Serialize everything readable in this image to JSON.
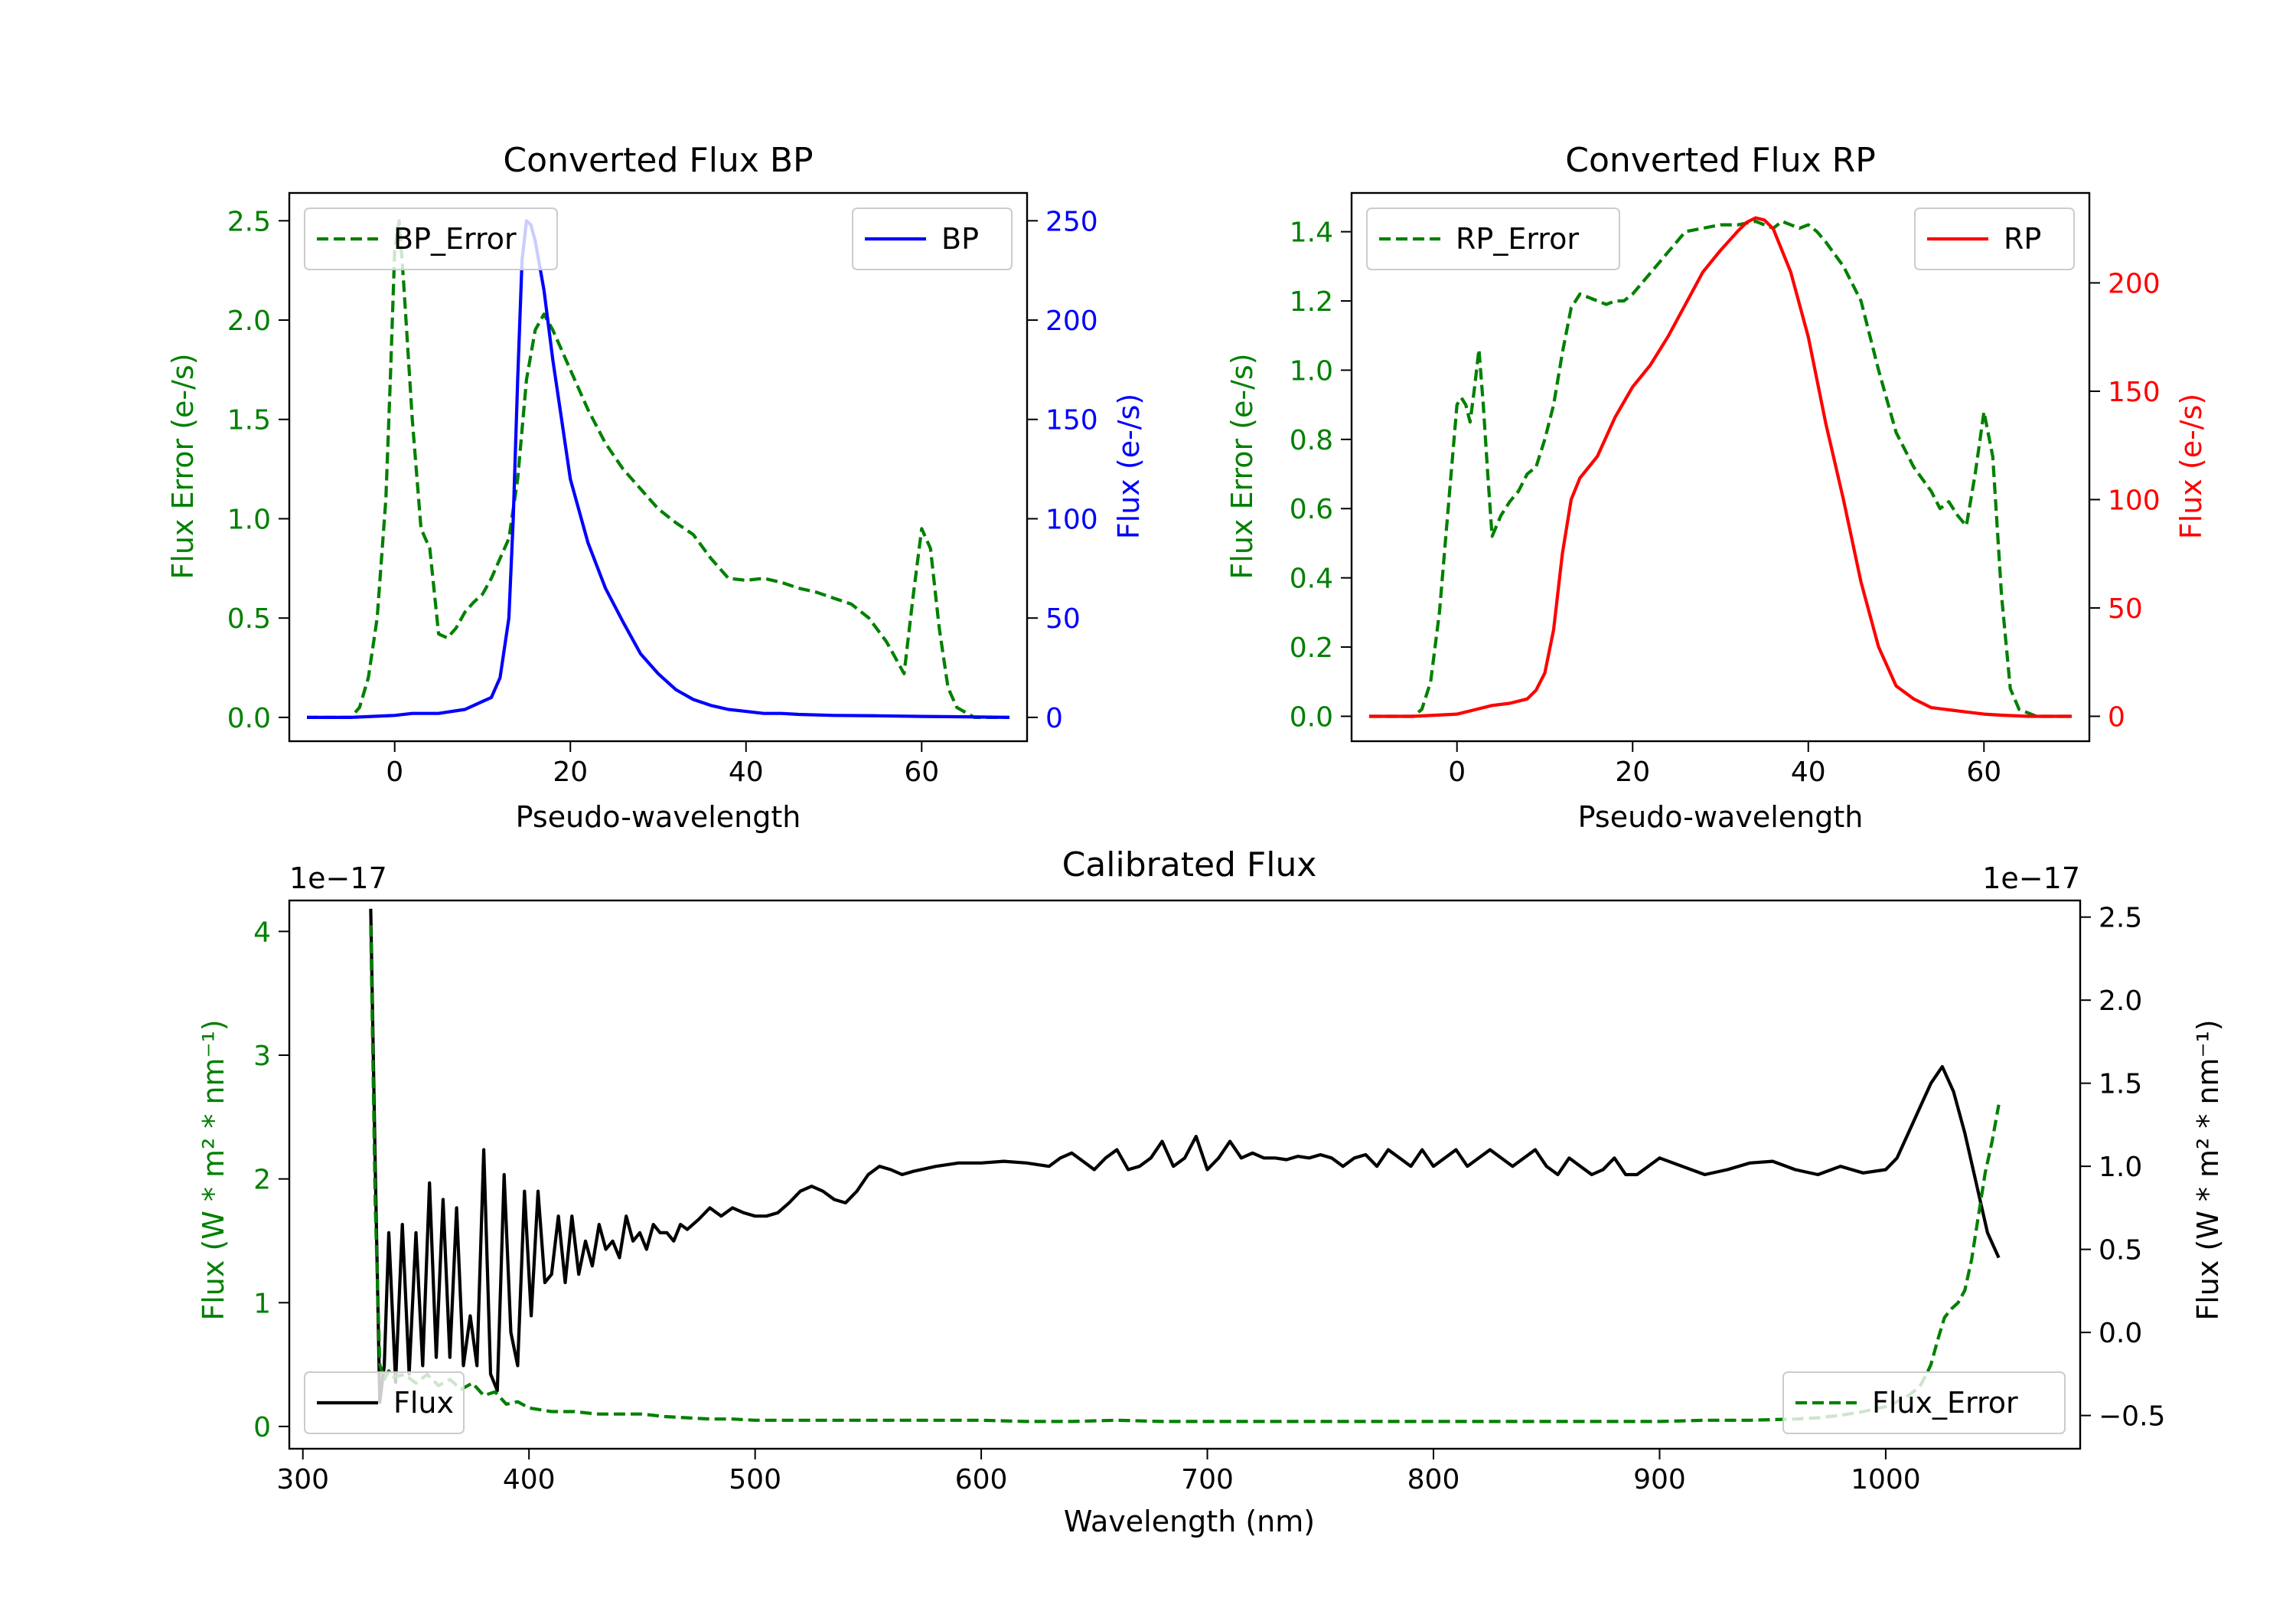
{
  "chart_data": [
    {
      "type": "line",
      "title": "Converted Flux BP",
      "xlabel": "Pseudo-wavelength",
      "ylabel_left": "Flux Error (e-/s)",
      "ylabel_right": "Flux (e-/s)",
      "xlim": [
        -12,
        72
      ],
      "ylim_left": [
        -0.12,
        2.64
      ],
      "ylim_right": [
        -12,
        264
      ],
      "xticks": [
        0,
        20,
        40,
        60
      ],
      "yticks_left": [
        "0.0",
        "0.5",
        "1.0",
        "1.5",
        "2.0",
        "2.5"
      ],
      "yticks_right": [
        "0",
        "50",
        "100",
        "150",
        "200",
        "250"
      ],
      "grid": false,
      "series": [
        {
          "name": "BP_Error",
          "axis": "left",
          "style": "dashed",
          "color": "#008000",
          "legend": "top-left",
          "x": [
            -10,
            -5,
            -4,
            -3,
            -2,
            -1,
            -0.5,
            0,
            0.5,
            1,
            2,
            3,
            4,
            5,
            6,
            7,
            8,
            9,
            10,
            11,
            12,
            13,
            14,
            15,
            16,
            17,
            18,
            19,
            20,
            22,
            24,
            26,
            28,
            30,
            32,
            34,
            36,
            38,
            40,
            42,
            44,
            46,
            48,
            50,
            52,
            54,
            56,
            57,
            58,
            59,
            60,
            61,
            62,
            63,
            64,
            66,
            70
          ],
          "y": [
            0.0,
            0.0,
            0.05,
            0.2,
            0.5,
            1.1,
            1.7,
            2.35,
            2.5,
            2.2,
            1.5,
            0.95,
            0.85,
            0.42,
            0.4,
            0.45,
            0.53,
            0.58,
            0.62,
            0.7,
            0.8,
            0.9,
            1.2,
            1.7,
            1.95,
            2.03,
            1.95,
            1.85,
            1.75,
            1.55,
            1.38,
            1.25,
            1.15,
            1.05,
            0.98,
            0.92,
            0.8,
            0.7,
            0.69,
            0.7,
            0.68,
            0.65,
            0.63,
            0.6,
            0.57,
            0.5,
            0.38,
            0.3,
            0.22,
            0.6,
            0.95,
            0.85,
            0.45,
            0.15,
            0.05,
            0.0,
            0.0
          ]
        },
        {
          "name": "BP",
          "axis": "right",
          "style": "solid",
          "color": "#0000ff",
          "legend": "top-right",
          "x": [
            -10,
            -5,
            0,
            2,
            5,
            8,
            10,
            11,
            12,
            13,
            13.5,
            14,
            14.5,
            15,
            15.5,
            16,
            17,
            18,
            19,
            20,
            22,
            24,
            26,
            28,
            30,
            32,
            34,
            36,
            38,
            40,
            42,
            44,
            46,
            50,
            55,
            60,
            65,
            70
          ],
          "y": [
            0,
            0,
            1,
            2,
            2,
            4,
            8,
            10,
            20,
            50,
            100,
            170,
            230,
            250,
            248,
            240,
            215,
            180,
            150,
            120,
            88,
            65,
            48,
            32,
            22,
            14,
            9,
            6,
            4,
            3,
            2,
            2,
            1.5,
            1,
            0.8,
            0.5,
            0.3,
            0
          ]
        }
      ]
    },
    {
      "type": "line",
      "title": "Converted Flux RP",
      "xlabel": "Pseudo-wavelength",
      "ylabel_left": "Flux Error (e-/s)",
      "ylabel_right": "Flux (e-/s)",
      "xlim": [
        -12,
        72
      ],
      "ylim_left": [
        -0.072,
        1.512
      ],
      "ylim_right": [
        -11.5,
        241.5
      ],
      "xticks": [
        0,
        20,
        40,
        60
      ],
      "yticks_left": [
        "0.0",
        "0.2",
        "0.4",
        "0.6",
        "0.8",
        "1.0",
        "1.2",
        "1.4"
      ],
      "yticks_right": [
        "0",
        "50",
        "100",
        "150",
        "200"
      ],
      "grid": false,
      "series": [
        {
          "name": "RP_Error",
          "axis": "left",
          "style": "dashed",
          "color": "#008000",
          "legend": "top-left",
          "x": [
            -10,
            -5,
            -4,
            -3,
            -2,
            -1,
            0,
            0.5,
            1,
            1.5,
            2,
            2.5,
            3,
            3.5,
            4,
            5,
            6,
            7,
            8,
            9,
            10,
            11,
            12,
            13,
            14,
            15,
            16,
            17,
            18,
            19,
            20,
            22,
            24,
            26,
            28,
            30,
            32,
            34,
            36,
            37,
            38,
            39,
            40,
            41,
            42,
            44,
            46,
            48,
            50,
            52,
            54,
            55,
            56,
            57,
            58,
            59,
            60,
            61,
            62,
            63,
            64,
            66,
            70
          ],
          "y": [
            0.0,
            0.0,
            0.02,
            0.1,
            0.3,
            0.6,
            0.9,
            0.92,
            0.9,
            0.85,
            0.95,
            1.06,
            0.9,
            0.7,
            0.52,
            0.58,
            0.62,
            0.65,
            0.7,
            0.72,
            0.8,
            0.9,
            1.05,
            1.18,
            1.22,
            1.21,
            1.2,
            1.19,
            1.2,
            1.2,
            1.22,
            1.28,
            1.34,
            1.4,
            1.41,
            1.42,
            1.42,
            1.43,
            1.41,
            1.43,
            1.42,
            1.41,
            1.42,
            1.4,
            1.37,
            1.3,
            1.2,
            1.0,
            0.82,
            0.72,
            0.65,
            0.6,
            0.62,
            0.58,
            0.55,
            0.7,
            0.88,
            0.75,
            0.35,
            0.08,
            0.02,
            0.0,
            0.0
          ]
        },
        {
          "name": "RP",
          "axis": "right",
          "style": "solid",
          "color": "#ff0000",
          "legend": "top-right",
          "x": [
            -10,
            -5,
            0,
            2,
            4,
            6,
            8,
            9,
            10,
            11,
            12,
            13,
            14,
            15,
            16,
            18,
            20,
            22,
            24,
            26,
            28,
            30,
            32,
            33,
            34,
            35,
            36,
            38,
            40,
            42,
            44,
            46,
            48,
            50,
            52,
            54,
            56,
            58,
            60,
            62,
            65,
            70
          ],
          "y": [
            0,
            0,
            1,
            3,
            5,
            6,
            8,
            12,
            20,
            40,
            75,
            100,
            110,
            115,
            120,
            138,
            152,
            162,
            175,
            190,
            205,
            215,
            224,
            228,
            230,
            229,
            225,
            205,
            175,
            135,
            100,
            62,
            32,
            14,
            8,
            4,
            3,
            2,
            1,
            0.5,
            0,
            0
          ]
        }
      ]
    },
    {
      "type": "line",
      "title": "Calibrated Flux",
      "xlabel": "Wavelength (nm)",
      "ylabel_left": "Flux (W * m² * nm⁻¹)",
      "ylabel_right": "Flux (W * m² * nm⁻¹)",
      "offset_left": "1e−17",
      "offset_right": "1e−17",
      "xlim": [
        294,
        1086
      ],
      "ylim_left": [
        -0.18,
        4.25
      ],
      "ylim_right": [
        -0.7,
        2.6
      ],
      "xticks": [
        300,
        400,
        500,
        600,
        700,
        800,
        900,
        1000
      ],
      "yticks_left": [
        "0",
        "1",
        "2",
        "3",
        "4"
      ],
      "yticks_right": [
        "−0.5",
        "0.0",
        "0.5",
        "1.0",
        "1.5",
        "2.0",
        "2.5"
      ],
      "grid": false,
      "series": [
        {
          "name": "Flux",
          "axis": "right",
          "style": "solid",
          "color": "#000000",
          "legend": "bottom-left",
          "x": [
            330,
            332,
            334,
            336,
            338,
            341,
            344,
            347,
            350,
            353,
            356,
            359,
            362,
            365,
            368,
            371,
            374,
            377,
            380,
            383,
            386,
            389,
            392,
            395,
            398,
            401,
            404,
            407,
            410,
            413,
            416,
            419,
            422,
            425,
            428,
            431,
            434,
            437,
            440,
            443,
            446,
            449,
            452,
            455,
            458,
            461,
            464,
            467,
            470,
            475,
            480,
            485,
            490,
            495,
            500,
            505,
            510,
            515,
            520,
            525,
            530,
            535,
            540,
            545,
            550,
            555,
            560,
            565,
            570,
            580,
            590,
            600,
            610,
            620,
            630,
            635,
            640,
            645,
            650,
            655,
            660,
            665,
            670,
            675,
            680,
            685,
            690,
            695,
            700,
            705,
            710,
            715,
            720,
            725,
            730,
            735,
            740,
            745,
            750,
            755,
            760,
            765,
            770,
            775,
            780,
            785,
            790,
            795,
            800,
            805,
            810,
            815,
            820,
            825,
            830,
            835,
            840,
            845,
            850,
            855,
            860,
            865,
            870,
            875,
            880,
            885,
            890,
            895,
            900,
            910,
            920,
            930,
            940,
            950,
            960,
            970,
            980,
            990,
            1000,
            1005,
            1010,
            1015,
            1020,
            1025,
            1030,
            1035,
            1040,
            1045,
            1050
          ],
          "y": [
            2.55,
            1.0,
            -0.42,
            -0.2,
            0.6,
            -0.3,
            0.65,
            -0.25,
            0.6,
            -0.2,
            0.9,
            -0.15,
            0.8,
            -0.15,
            0.75,
            -0.2,
            0.1,
            -0.2,
            1.1,
            -0.25,
            -0.35,
            0.95,
            0.0,
            -0.2,
            0.85,
            0.1,
            0.85,
            0.3,
            0.35,
            0.7,
            0.3,
            0.7,
            0.35,
            0.55,
            0.4,
            0.65,
            0.5,
            0.55,
            0.45,
            0.7,
            0.55,
            0.6,
            0.5,
            0.65,
            0.6,
            0.6,
            0.55,
            0.65,
            0.62,
            0.68,
            0.75,
            0.7,
            0.75,
            0.72,
            0.7,
            0.7,
            0.72,
            0.78,
            0.85,
            0.88,
            0.85,
            0.8,
            0.78,
            0.85,
            0.95,
            1.0,
            0.98,
            0.95,
            0.97,
            1.0,
            1.02,
            1.02,
            1.03,
            1.02,
            1.0,
            1.05,
            1.08,
            1.03,
            0.98,
            1.05,
            1.1,
            0.98,
            1.0,
            1.05,
            1.15,
            1.0,
            1.05,
            1.18,
            0.98,
            1.05,
            1.15,
            1.05,
            1.08,
            1.05,
            1.05,
            1.04,
            1.06,
            1.05,
            1.07,
            1.05,
            1.0,
            1.05,
            1.07,
            1.0,
            1.1,
            1.05,
            1.0,
            1.1,
            1.0,
            1.05,
            1.1,
            1.0,
            1.05,
            1.1,
            1.05,
            1.0,
            1.05,
            1.1,
            1.0,
            0.95,
            1.05,
            1.0,
            0.95,
            0.98,
            1.05,
            0.95,
            0.95,
            1.0,
            1.05,
            1.0,
            0.95,
            0.98,
            1.02,
            1.03,
            0.98,
            0.95,
            1.0,
            0.96,
            0.98,
            1.05,
            1.2,
            1.35,
            1.5,
            1.6,
            1.45,
            1.2,
            0.9,
            0.6,
            0.45
          ]
        },
        {
          "name": "Flux_Error",
          "axis": "left",
          "style": "dashed",
          "color": "#008000",
          "legend": "bottom-right",
          "x": [
            330,
            332,
            334,
            336,
            338,
            340,
            345,
            350,
            355,
            360,
            365,
            370,
            375,
            380,
            385,
            390,
            395,
            400,
            410,
            420,
            430,
            440,
            450,
            460,
            470,
            480,
            490,
            500,
            520,
            540,
            560,
            580,
            600,
            620,
            640,
            660,
            680,
            700,
            720,
            740,
            760,
            780,
            800,
            820,
            840,
            860,
            880,
            900,
            920,
            940,
            960,
            970,
            980,
            990,
            1000,
            1005,
            1010,
            1015,
            1018,
            1020,
            1023,
            1026,
            1029,
            1032,
            1035,
            1038,
            1041,
            1044,
            1047,
            1050
          ],
          "y": [
            4.05,
            1.8,
            0.5,
            0.38,
            0.45,
            0.4,
            0.42,
            0.35,
            0.42,
            0.33,
            0.38,
            0.3,
            0.35,
            0.25,
            0.28,
            0.18,
            0.2,
            0.15,
            0.12,
            0.12,
            0.1,
            0.1,
            0.1,
            0.08,
            0.07,
            0.06,
            0.06,
            0.05,
            0.05,
            0.05,
            0.05,
            0.05,
            0.05,
            0.04,
            0.04,
            0.05,
            0.04,
            0.04,
            0.04,
            0.04,
            0.04,
            0.04,
            0.04,
            0.04,
            0.04,
            0.04,
            0.04,
            0.04,
            0.05,
            0.05,
            0.06,
            0.07,
            0.09,
            0.12,
            0.16,
            0.2,
            0.25,
            0.32,
            0.42,
            0.5,
            0.7,
            0.88,
            0.95,
            1.0,
            1.1,
            1.35,
            1.7,
            2.05,
            2.3,
            2.6
          ]
        }
      ]
    }
  ]
}
